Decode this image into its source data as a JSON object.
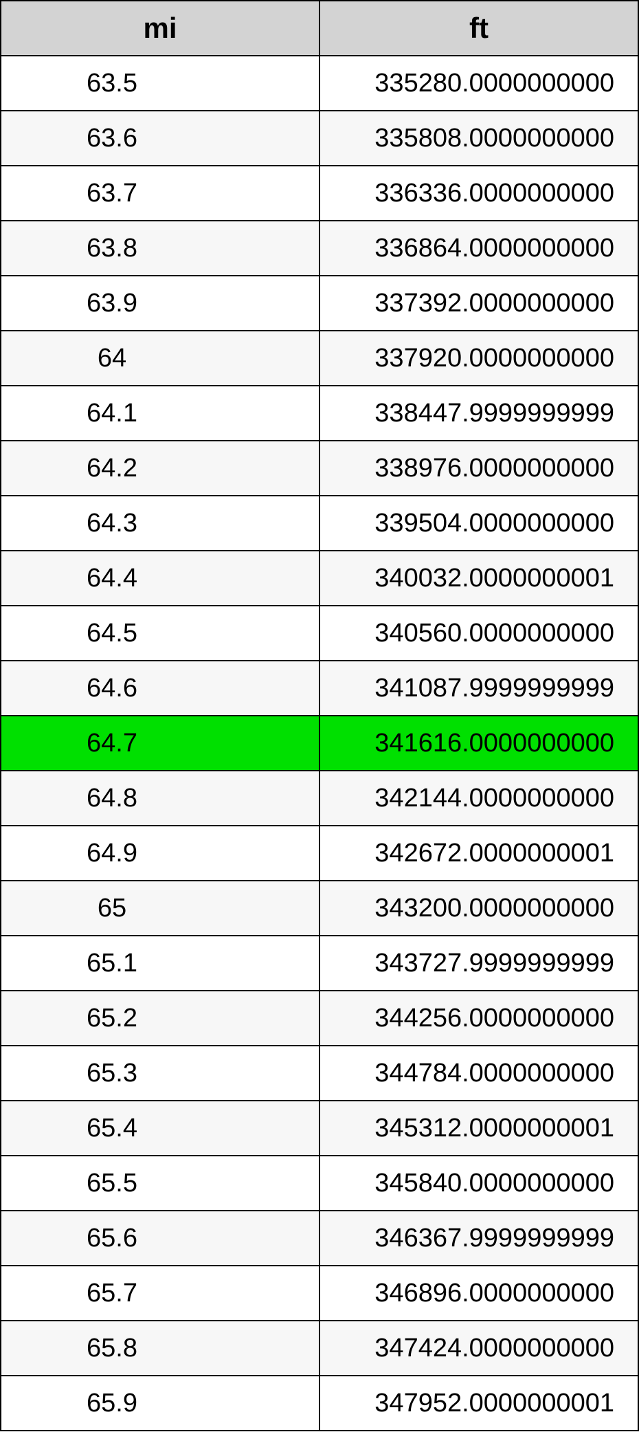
{
  "conversion_table": {
    "type": "table",
    "columns": [
      {
        "key": "mi",
        "label": "mi",
        "align": "center"
      },
      {
        "key": "ft",
        "label": "ft",
        "align": "right"
      }
    ],
    "header_bg": "#d3d3d3",
    "row_bg_odd": "#ffffff",
    "row_bg_even": "#f7f7f7",
    "highlight_bg": "#00e000",
    "border_color": "#000000",
    "font_family": "Arial",
    "header_fontsize_pt": 32,
    "cell_fontsize_pt": 28,
    "highlight_index": 12,
    "rows": [
      {
        "mi": "63.5",
        "ft": "335280.0000000000"
      },
      {
        "mi": "63.6",
        "ft": "335808.0000000000"
      },
      {
        "mi": "63.7",
        "ft": "336336.0000000000"
      },
      {
        "mi": "63.8",
        "ft": "336864.0000000000"
      },
      {
        "mi": "63.9",
        "ft": "337392.0000000000"
      },
      {
        "mi": "64",
        "ft": "337920.0000000000"
      },
      {
        "mi": "64.1",
        "ft": "338447.9999999999"
      },
      {
        "mi": "64.2",
        "ft": "338976.0000000000"
      },
      {
        "mi": "64.3",
        "ft": "339504.0000000000"
      },
      {
        "mi": "64.4",
        "ft": "340032.0000000001"
      },
      {
        "mi": "64.5",
        "ft": "340560.0000000000"
      },
      {
        "mi": "64.6",
        "ft": "341087.9999999999"
      },
      {
        "mi": "64.7",
        "ft": "341616.0000000000"
      },
      {
        "mi": "64.8",
        "ft": "342144.0000000000"
      },
      {
        "mi": "64.9",
        "ft": "342672.0000000001"
      },
      {
        "mi": "65",
        "ft": "343200.0000000000"
      },
      {
        "mi": "65.1",
        "ft": "343727.9999999999"
      },
      {
        "mi": "65.2",
        "ft": "344256.0000000000"
      },
      {
        "mi": "65.3",
        "ft": "344784.0000000000"
      },
      {
        "mi": "65.4",
        "ft": "345312.0000000001"
      },
      {
        "mi": "65.5",
        "ft": "345840.0000000000"
      },
      {
        "mi": "65.6",
        "ft": "346367.9999999999"
      },
      {
        "mi": "65.7",
        "ft": "346896.0000000000"
      },
      {
        "mi": "65.8",
        "ft": "347424.0000000000"
      },
      {
        "mi": "65.9",
        "ft": "347952.0000000001"
      }
    ]
  }
}
